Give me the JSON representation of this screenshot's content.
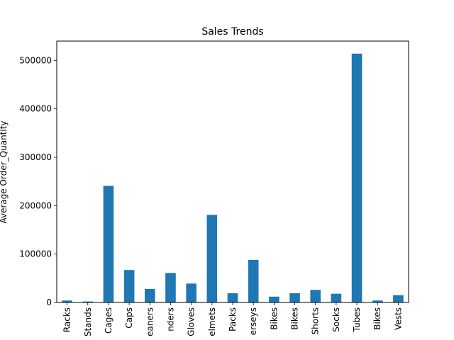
{
  "chart_data": {
    "type": "bar",
    "title": "Sales Trends",
    "xlabel": "",
    "ylabel": "Average Order_Quantity",
    "ylim": [
      0,
      540000
    ],
    "yticks": [
      0,
      100000,
      200000,
      300000,
      400000,
      500000
    ],
    "categories": [
      "Racks",
      "Stands",
      "Cages",
      "Caps",
      "eaners",
      "nders",
      "Gloves",
      "elmets",
      "Packs",
      "erseys",
      "Bikes",
      "Bikes",
      "Shorts",
      "Socks",
      "Tubes",
      "Bikes",
      "Vests"
    ],
    "values": [
      4000,
      2000,
      241000,
      67000,
      28000,
      61000,
      39000,
      181000,
      19000,
      88000,
      12000,
      19000,
      26000,
      18000,
      514000,
      4000,
      15000
    ],
    "bar_color": "#1f77b4",
    "grid": false,
    "legend": "none"
  }
}
